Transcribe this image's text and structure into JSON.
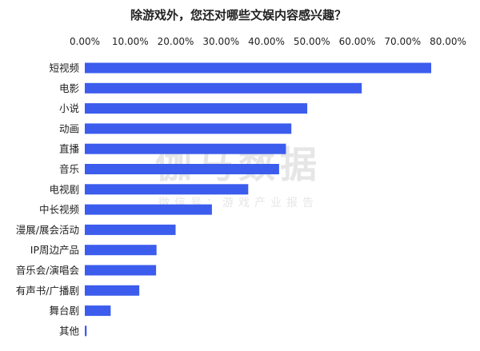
{
  "watermark": {
    "brand": "伽马数据",
    "sub": "微信号：游戏产业报告"
  },
  "colors": {
    "bar": "#3b5ced",
    "text": "#222222"
  },
  "chart_data": {
    "type": "bar",
    "orientation": "horizontal",
    "title": "除游戏外，您还对哪些文娱内容感兴趣？",
    "xlim": [
      0,
      0.8
    ],
    "xticks": [
      0,
      0.1,
      0.2,
      0.3,
      0.4,
      0.5,
      0.6,
      0.7,
      0.8
    ],
    "xtick_labels": [
      "0.00%",
      "10.00%",
      "20.00%",
      "30.00%",
      "40.00%",
      "50.00%",
      "60.00%",
      "70.00%",
      "80.00%"
    ],
    "x_axis_position": "top",
    "grid": false,
    "categories": [
      "短视频",
      "电影",
      "小说",
      "动画",
      "直播",
      "音乐",
      "电视剧",
      "中长视频",
      "漫展/展会活动",
      "IP周边产品",
      "音乐会/演唱会",
      "有声书/广播剧",
      "舞台剧",
      "其他"
    ],
    "values": [
      0.763,
      0.61,
      0.49,
      0.455,
      0.443,
      0.428,
      0.36,
      0.28,
      0.2,
      0.158,
      0.157,
      0.12,
      0.057,
      0.004
    ]
  }
}
